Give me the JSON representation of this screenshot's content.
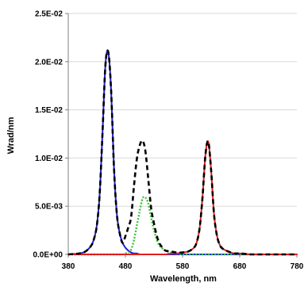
{
  "chart_data": {
    "type": "line",
    "title": "",
    "xlabel": "Wavelength, nm",
    "ylabel": "Wrad/nm",
    "xlim": [
      380,
      780
    ],
    "ylim": [
      0,
      0.025
    ],
    "x_ticks": [
      380,
      480,
      580,
      680,
      780
    ],
    "x_tick_labels": [
      "380",
      "480",
      "580",
      "680",
      "780"
    ],
    "y_ticks": [
      0,
      0.005,
      0.01,
      0.015,
      0.02,
      0.025
    ],
    "y_tick_labels": [
      "0.0E+00",
      "5.0E-03",
      "1.0E-02",
      "1.5E-02",
      "2.0E-02",
      "2.5E-02"
    ],
    "grid": "horizontal",
    "legend": "none",
    "x": [
      380,
      390,
      400,
      410,
      420,
      425,
      430,
      435,
      440,
      445,
      450,
      455,
      460,
      465,
      470,
      475,
      480,
      485,
      490,
      495,
      500,
      505,
      510,
      515,
      520,
      525,
      530,
      535,
      540,
      545,
      550,
      560,
      570,
      580,
      590,
      600,
      605,
      610,
      615,
      620,
      625,
      630,
      635,
      640,
      645,
      650,
      660,
      670,
      680,
      700,
      720,
      740,
      760,
      780
    ],
    "series": [
      {
        "color": "#1f1fd6",
        "style": "solid",
        "values": [
          0,
          5e-05,
          0.0001,
          0.0003,
          0.0009,
          0.0016,
          0.003,
          0.0063,
          0.0127,
          0.0196,
          0.021,
          0.017,
          0.009,
          0.0042,
          0.0022,
          0.0012,
          0.0007,
          0.0004,
          0.0002,
          0.0001,
          0.0001,
          0,
          0,
          0,
          0,
          0,
          0,
          0,
          0,
          0,
          0,
          0,
          0,
          0,
          0,
          0,
          0,
          0,
          0,
          0,
          0,
          0,
          0,
          0,
          0,
          0,
          0,
          0,
          0,
          0,
          0,
          0,
          0,
          0
        ]
      },
      {
        "color": "#3cc23c",
        "style": "dotted",
        "values": [
          0,
          0,
          0,
          0,
          0,
          0,
          0,
          0,
          0,
          0,
          0,
          0,
          0,
          0,
          0,
          0,
          0.0001,
          0.0002,
          0.0005,
          0.0015,
          0.003,
          0.0045,
          0.0058,
          0.0059,
          0.0053,
          0.0038,
          0.0025,
          0.0015,
          0.0009,
          0.0006,
          0.0004,
          0.0002,
          0.0001,
          0,
          0,
          0,
          0,
          0,
          0,
          0,
          0,
          0,
          0,
          0,
          0,
          0,
          0,
          0,
          0,
          0,
          0,
          0,
          0,
          0
        ]
      },
      {
        "color": "#e01e1e",
        "style": "solid",
        "values": [
          0,
          0,
          0,
          0,
          0,
          0,
          0,
          0,
          0,
          0,
          0,
          0,
          0,
          0,
          0,
          0,
          0,
          0,
          0,
          0,
          0,
          0,
          0,
          0,
          0,
          0,
          0,
          0,
          0,
          0,
          0,
          0.0001,
          0.0001,
          0.0002,
          0.0003,
          0.0007,
          0.0013,
          0.0028,
          0.006,
          0.0103,
          0.0117,
          0.0087,
          0.0042,
          0.002,
          0.001,
          0.0006,
          0.0003,
          0.0001,
          0.0001,
          0,
          0,
          0,
          0,
          0
        ]
      },
      {
        "color": "#000000",
        "style": "dashed",
        "values": [
          0,
          5e-05,
          0.0001,
          0.0003,
          0.0009,
          0.0016,
          0.003,
          0.0063,
          0.0127,
          0.0196,
          0.021,
          0.017,
          0.009,
          0.0042,
          0.0022,
          0.0012,
          0.0019,
          0.0028,
          0.0039,
          0.0071,
          0.0099,
          0.0113,
          0.0118,
          0.0107,
          0.0078,
          0.0048,
          0.0032,
          0.0019,
          0.0011,
          0.0007,
          0.0004,
          0.0003,
          0.0002,
          0.0002,
          0.0003,
          0.0007,
          0.0013,
          0.0028,
          0.006,
          0.0103,
          0.0117,
          0.0087,
          0.0042,
          0.002,
          0.001,
          0.0006,
          0.0003,
          0.0001,
          0.0001,
          0,
          0,
          0,
          0,
          0
        ]
      }
    ]
  }
}
